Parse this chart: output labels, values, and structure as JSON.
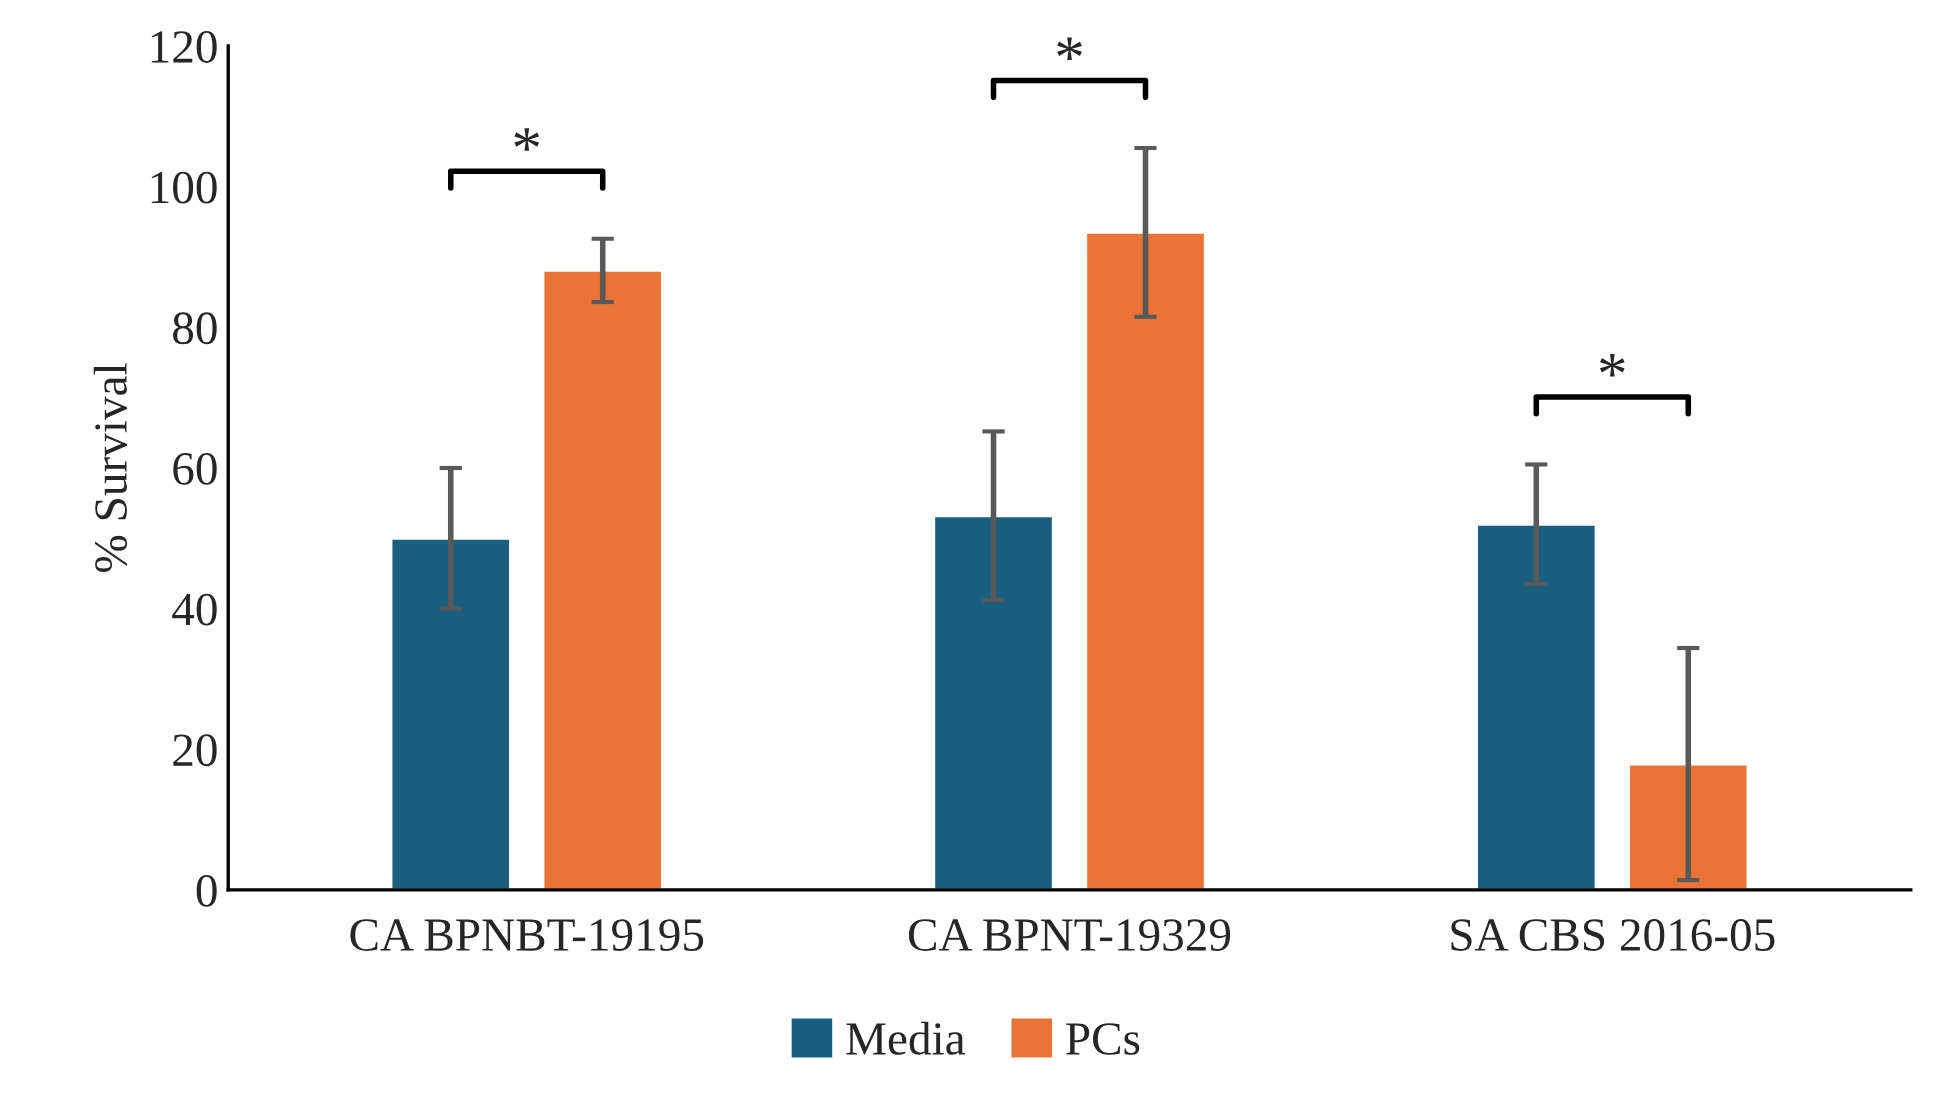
{
  "chart_data": {
    "type": "bar",
    "ylabel": "% Survival",
    "categories": [
      "CA BPNBT-19195",
      "CA BPNT-19329",
      "SA CBS 2016-05"
    ],
    "series": [
      {
        "name": "Media",
        "color": "#1b5f80",
        "values": [
          50,
          53.2,
          52
        ],
        "errors": [
          10,
          12,
          8.5
        ]
      },
      {
        "name": "PCs",
        "color": "#e97435",
        "values": [
          88.1,
          93.5,
          17.9
        ],
        "errors": [
          4.5,
          12,
          16.5
        ]
      }
    ],
    "ylim": [
      0,
      120
    ],
    "yticks": [
      0,
      20,
      40,
      60,
      80,
      100,
      120
    ],
    "grid": false,
    "legend": "bottom",
    "annotations": [
      "*",
      "*",
      "*"
    ]
  }
}
